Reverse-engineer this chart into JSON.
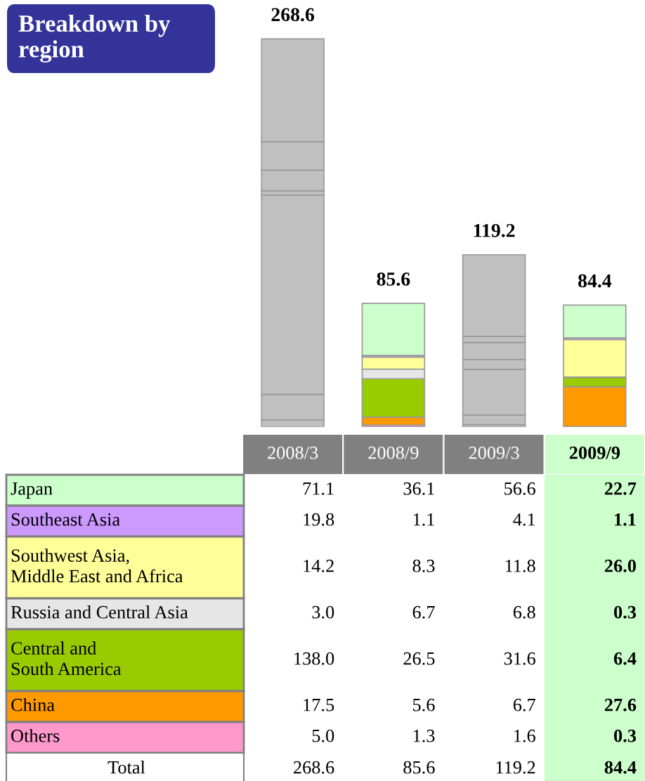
{
  "chart_data": {
    "type": "bar",
    "stacked": true,
    "title": "Breakdown by\nregion",
    "categories": [
      "2008/3",
      "2008/9",
      "2009/3",
      "2009/9"
    ],
    "totals": [
      "268.6",
      "85.6",
      "119.2",
      "84.4"
    ],
    "annotations": [
      "Total"
    ],
    "legend": "left",
    "series": [
      {
        "name": "Others",
        "color": "#ff99cc",
        "colors": [
          "#c0c0c0",
          "#ff99cc",
          "#c0c0c0",
          "#ff99cc"
        ],
        "values": [
          5.0,
          1.3,
          1.6,
          0.3
        ],
        "value_labels": [
          "5.0",
          "1.3",
          "1.6",
          "0.3"
        ]
      },
      {
        "name": "China",
        "color": "#ff9900",
        "colors": [
          "#c0c0c0",
          "#ff9900",
          "#c0c0c0",
          "#ff9900"
        ],
        "values": [
          17.5,
          5.6,
          6.7,
          27.6
        ],
        "value_labels": [
          "17.5",
          "5.6",
          "6.7",
          "27.6"
        ]
      },
      {
        "name": "Central and\nSouth America",
        "color": "#99cc00",
        "colors": [
          "#c0c0c0",
          "#99cc00",
          "#c0c0c0",
          "#99cc00"
        ],
        "values": [
          138.0,
          26.5,
          31.6,
          6.4
        ],
        "value_labels": [
          "138.0",
          "26.5",
          "31.6",
          "6.4"
        ]
      },
      {
        "name": "Russia and Central Asia",
        "color": "#e6e6e6",
        "colors": [
          "#c0c0c0",
          "#e6e6e6",
          "#c0c0c0",
          "#e6e6e6"
        ],
        "values": [
          3.0,
          6.7,
          6.8,
          0.3
        ],
        "value_labels": [
          "3.0",
          "6.7",
          "6.8",
          "0.3"
        ]
      },
      {
        "name": "Southwest Asia,\nMiddle East and Africa",
        "color": "#ffff99",
        "colors": [
          "#c0c0c0",
          "#ffff99",
          "#c0c0c0",
          "#ffff99"
        ],
        "values": [
          14.2,
          8.3,
          11.8,
          26.0
        ],
        "value_labels": [
          "14.2",
          "8.3",
          "11.8",
          "26.0"
        ]
      },
      {
        "name": "Southeast Asia",
        "color": "#cc99ff",
        "colors": [
          "#c0c0c0",
          "#cc99ff",
          "#c0c0c0",
          "#cc99ff"
        ],
        "values": [
          19.8,
          1.1,
          4.1,
          1.1
        ],
        "value_labels": [
          "19.8",
          "1.1",
          "4.1",
          "1.1"
        ]
      },
      {
        "name": "Japan",
        "color": "#ccffcc",
        "colors": [
          "#c0c0c0",
          "#ccffcc",
          "#c0c0c0",
          "#ccffcc"
        ],
        "values": [
          71.1,
          36.1,
          56.6,
          22.7
        ],
        "value_labels": [
          "71.1",
          "36.1",
          "56.6",
          "22.7"
        ]
      }
    ]
  }
}
